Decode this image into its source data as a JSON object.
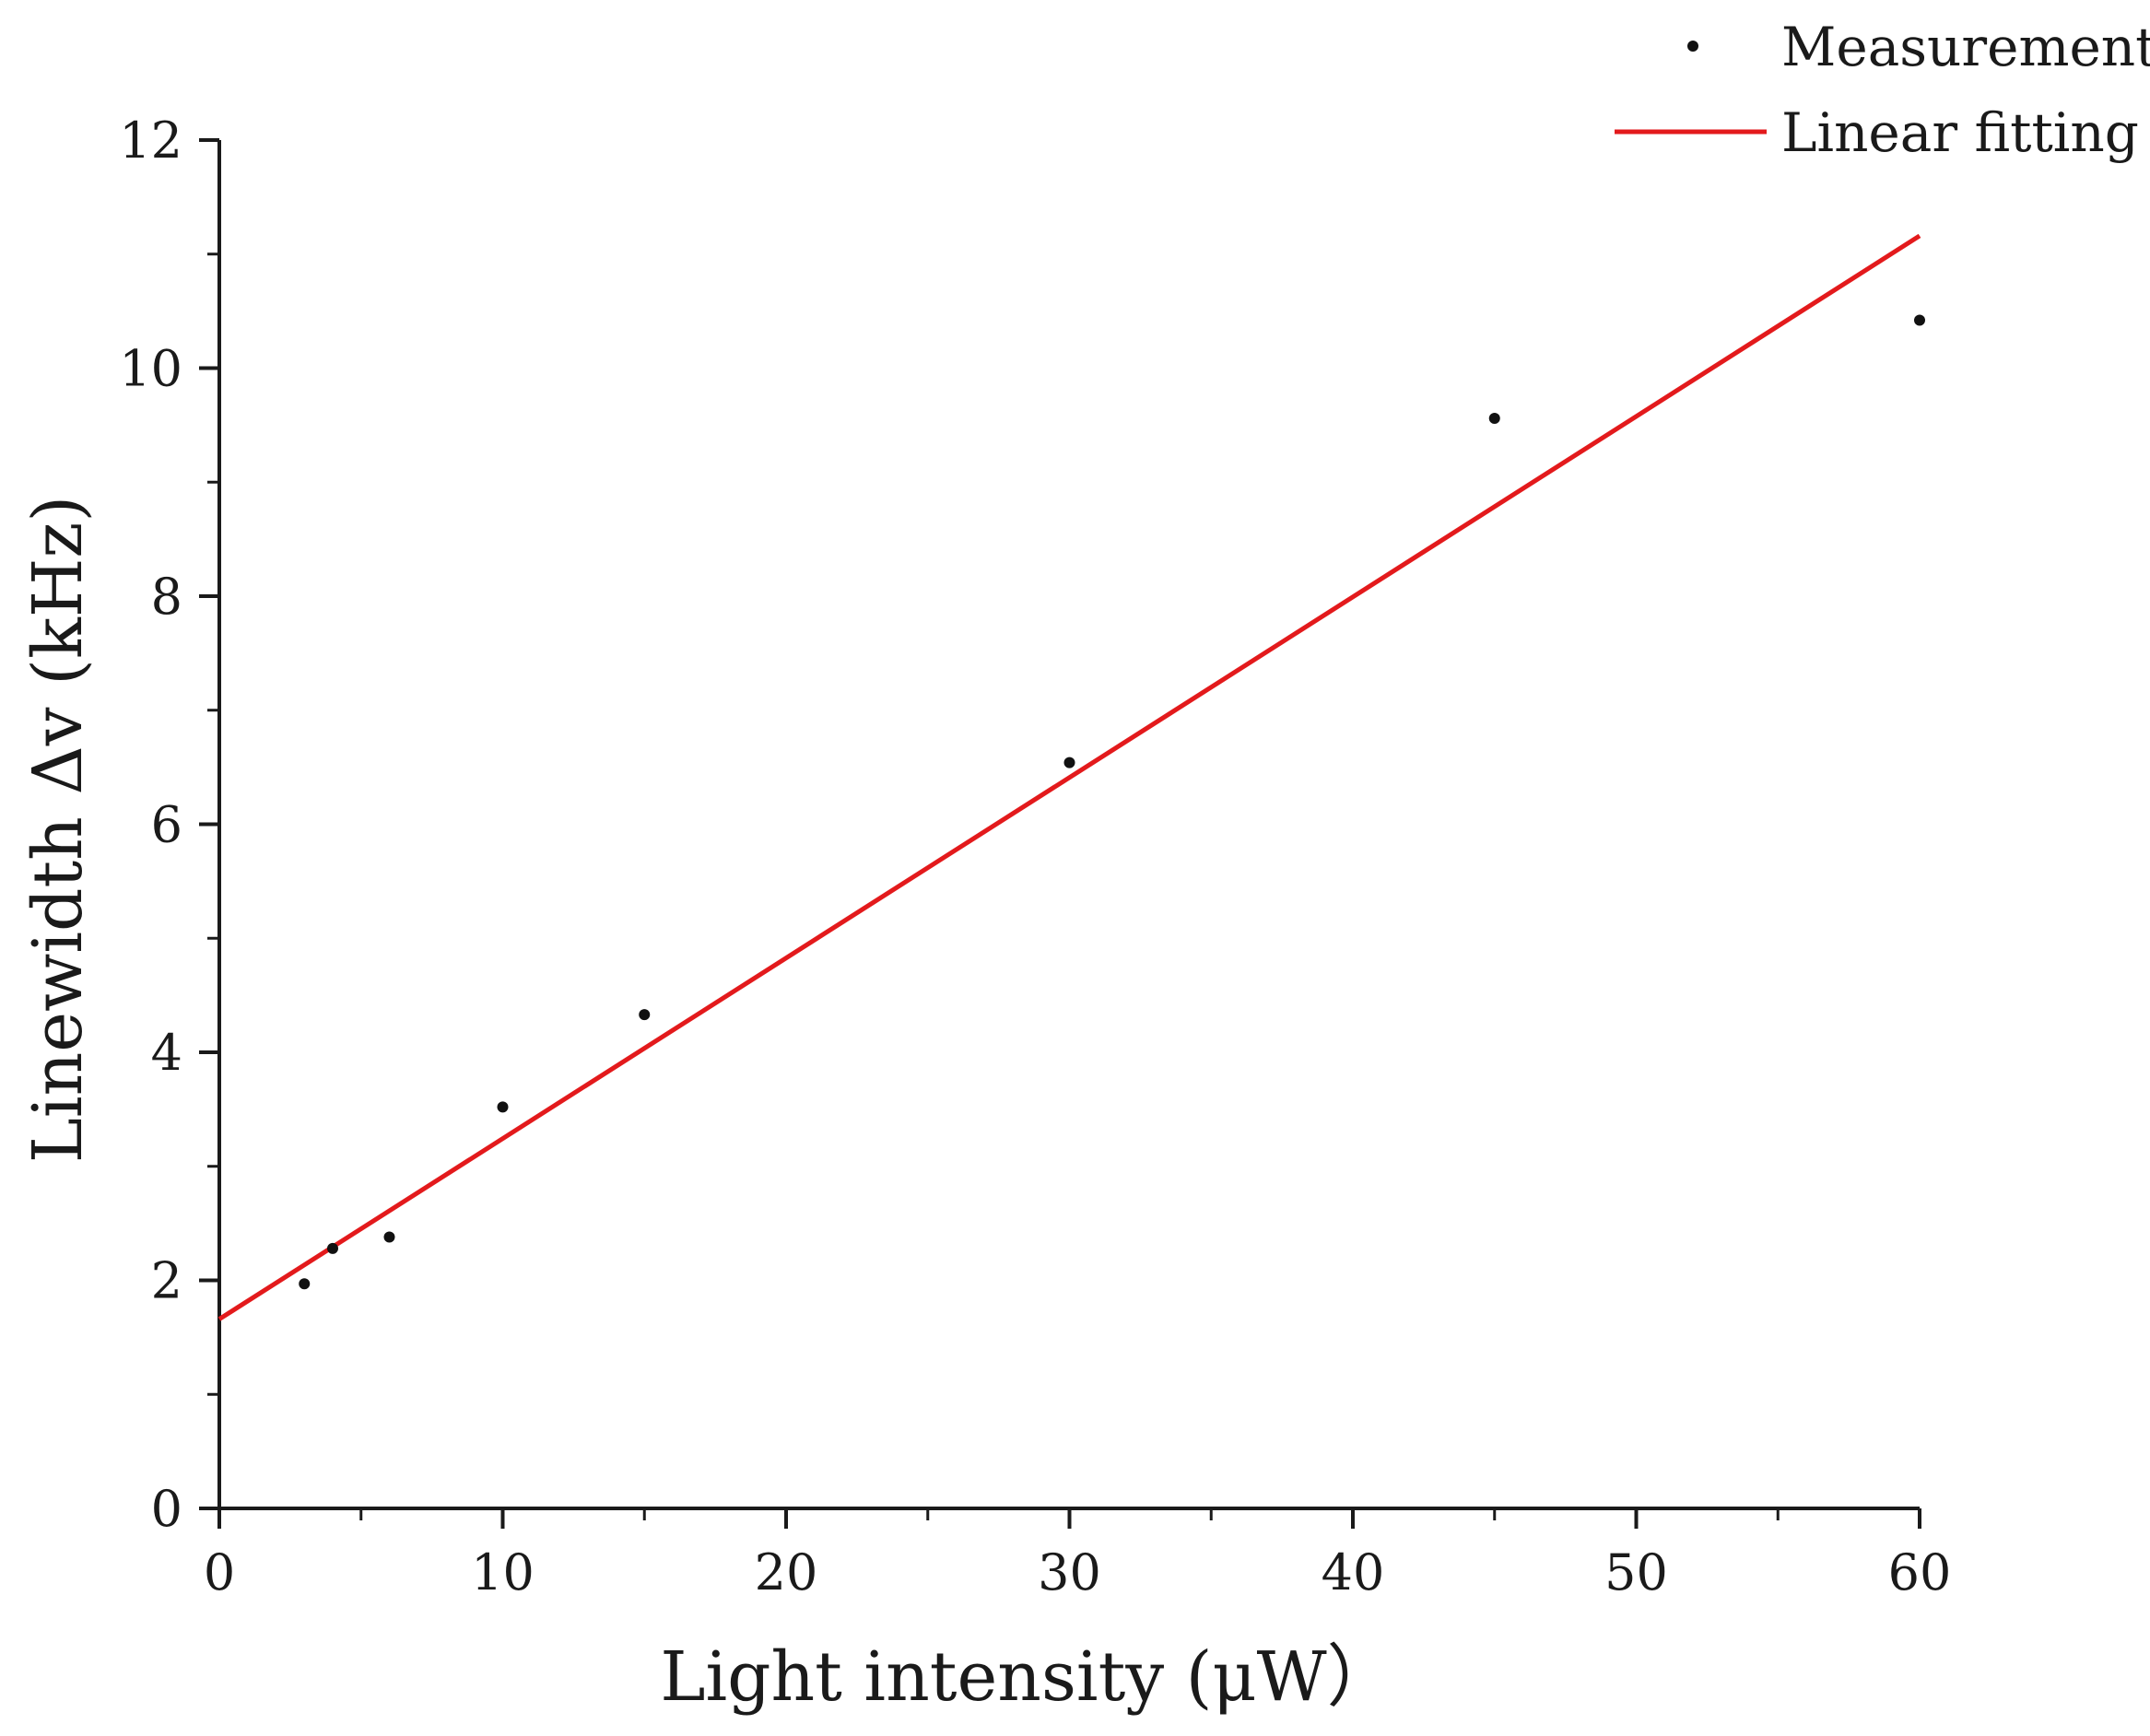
{
  "chart_data": {
    "type": "scatter",
    "title": "",
    "xlabel": "Light intensity (μW）",
    "ylabel": "Linewidth Δv (kHz)",
    "xlim": [
      0,
      60
    ],
    "ylim": [
      0,
      12
    ],
    "x_ticks": [
      0,
      10,
      20,
      30,
      40,
      50,
      60
    ],
    "x_tick_labels": [
      "0",
      "10",
      "20",
      "30",
      "40",
      "50",
      "60"
    ],
    "y_ticks": [
      0,
      2,
      4,
      6,
      8,
      10,
      12
    ],
    "y_tick_labels": [
      "0",
      "2",
      "4",
      "6",
      "8",
      "10",
      "12"
    ],
    "x_minor_step": 5,
    "y_minor_step": 1,
    "grid": false,
    "legend_position": "top-right",
    "series": [
      {
        "name": "Measurement",
        "kind": "scatter",
        "color": "#111111",
        "x": [
          3,
          4,
          6,
          10,
          15,
          30,
          45,
          60
        ],
        "y": [
          1.97,
          2.28,
          2.38,
          3.52,
          4.33,
          6.54,
          9.56,
          10.42
        ]
      },
      {
        "name": "Linear fitting",
        "kind": "line",
        "color": "#e31a1c",
        "x": [
          0,
          60
        ],
        "y": [
          1.66,
          11.16
        ]
      }
    ]
  }
}
